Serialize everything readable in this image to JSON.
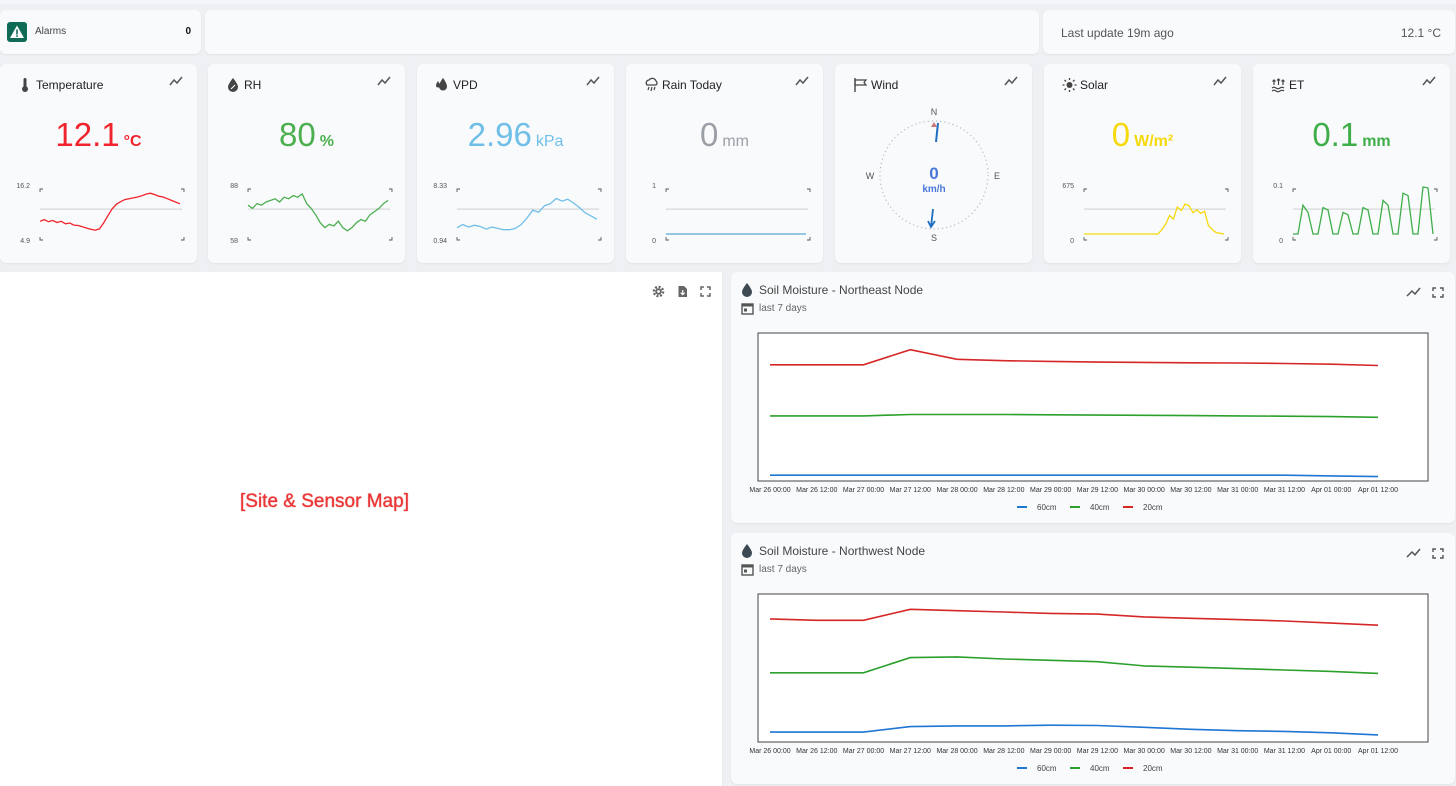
{
  "alarms": {
    "label": "Alarms",
    "count": "0"
  },
  "status": {
    "last_update": "Last update 19m ago",
    "current_temp": "12.1 °C"
  },
  "tiles": [
    {
      "id": "temperature",
      "title": "Temperature",
      "value": "12.1",
      "unit": "°C",
      "color": "#f0242c",
      "icon": "thermometer-icon",
      "range": [
        "16.2",
        "4.9"
      ],
      "series": [
        7.9,
        8.3,
        7.8,
        8.1,
        7.6,
        7.9,
        7.3,
        7.5,
        7.0,
        6.9,
        6.6,
        6.3,
        6.0,
        5.8,
        6.1,
        7.5,
        9.2,
        10.8,
        11.9,
        12.5,
        13.0,
        13.2,
        13.4,
        13.6,
        13.9,
        14.3,
        14.5,
        14.2,
        13.8,
        13.6,
        13.2,
        12.8,
        12.4,
        12.0
      ]
    },
    {
      "id": "rh",
      "title": "RH",
      "value": "80",
      "unit": "%",
      "color": "#4caf50",
      "icon": "droplet-percent-icon",
      "range": [
        "88",
        "58"
      ],
      "series": [
        76,
        74,
        77,
        76,
        78,
        79,
        80,
        78,
        81,
        80,
        82,
        81,
        83,
        77,
        74,
        70,
        65,
        62,
        64,
        63,
        66,
        62,
        60,
        62,
        65,
        67,
        66,
        70,
        72,
        74,
        77,
        79
      ]
    },
    {
      "id": "vpd",
      "title": "VPD",
      "value": "2.96",
      "unit": "kPa",
      "color": "#6fbfe8",
      "icon": "leaf-droplet-icon",
      "range": [
        "8.33",
        "0.94"
      ],
      "series": [
        1.9,
        2.4,
        2.0,
        2.3,
        2.1,
        1.7,
        2.0,
        1.8,
        1.6,
        1.6,
        1.8,
        2.4,
        3.4,
        4.6,
        4.3,
        5.3,
        5.6,
        6.4,
        6.0,
        6.3,
        5.7,
        5.0,
        4.2,
        3.7,
        3.2
      ]
    },
    {
      "id": "rain",
      "title": "Rain Today",
      "value": "0",
      "unit": "mm",
      "color": "#9aa0a6",
      "icon": "rain-cloud-icon",
      "range": [
        "1",
        "0"
      ],
      "series": [
        0,
        0,
        0,
        0,
        0,
        0,
        0,
        0,
        0,
        0
      ]
    },
    {
      "id": "wind",
      "title": "Wind",
      "value": "0",
      "unit": "km/h",
      "color": "#4a78d8",
      "icon": "windsock-icon",
      "compass": {
        "n": "N",
        "e": "E",
        "s": "S",
        "w": "W"
      }
    },
    {
      "id": "solar",
      "title": "Solar",
      "value": "0",
      "unit": "W/m²",
      "color": "#f5d90a",
      "icon": "sun-icon",
      "range": [
        "675",
        "0"
      ],
      "series": [
        0,
        0,
        0,
        0,
        0,
        0,
        0,
        0,
        0,
        0,
        0,
        0,
        0,
        0,
        0,
        0,
        0,
        0,
        0,
        0,
        60,
        140,
        260,
        210,
        380,
        330,
        420,
        400,
        300,
        340,
        290,
        320,
        120,
        60,
        20,
        10,
        0
      ]
    },
    {
      "id": "et",
      "title": "ET",
      "value": "0.1",
      "unit": "mm",
      "color": "#3fae49",
      "icon": "evaporation-icon",
      "range": [
        "0.1",
        "0"
      ],
      "series": [
        0,
        0,
        0.06,
        0.045,
        0,
        0,
        0.055,
        0.05,
        0,
        0,
        0.045,
        0.04,
        0,
        0,
        0.055,
        0.05,
        0,
        0,
        0.07,
        0.06,
        0,
        0,
        0.085,
        0.08,
        0,
        0,
        0.098,
        0.096,
        0
      ]
    }
  ],
  "map": {
    "placeholder": "[Site & Sensor Map]"
  },
  "soil_charts": [
    {
      "id": "ne",
      "title": "Soil Moisture - Northeast Node",
      "subtitle": "last 7 days"
    },
    {
      "id": "nw",
      "title": "Soil Moisture - Northwest Node",
      "subtitle": "last 7 days"
    }
  ],
  "chart_data": [
    {
      "type": "line",
      "title": "Soil Moisture - Northeast Node",
      "x": [
        "Mar 26 00:00",
        "Mar 26 12:00",
        "Mar 27 00:00",
        "Mar 27 12:00",
        "Mar 28 00:00",
        "Mar 28 12:00",
        "Mar 29 00:00",
        "Mar 29 12:00",
        "Mar 30 00:00",
        "Mar 30 12:00",
        "Mar 31 00:00",
        "Mar 31 12:00",
        "Apr 01 00:00",
        "Apr 01 12:00"
      ],
      "ylim": [
        0,
        100
      ],
      "legend_position": "bottom",
      "series": [
        {
          "name": "60cm",
          "color": "#1f77d4",
          "values": [
            2,
            2,
            2,
            2,
            2,
            2,
            2,
            2,
            2,
            2,
            2,
            2,
            1.5,
            1
          ]
        },
        {
          "name": "40cm",
          "color": "#2ca02c",
          "values": [
            45,
            45,
            45,
            46,
            46,
            46,
            45.8,
            45.6,
            45.4,
            45.2,
            45,
            44.8,
            44.5,
            44
          ]
        },
        {
          "name": "20cm",
          "color": "#d62728",
          "values": [
            82,
            82,
            82,
            93,
            86,
            85,
            84.5,
            84,
            83.8,
            83.5,
            83.3,
            83,
            82.5,
            81.5
          ]
        }
      ]
    },
    {
      "type": "line",
      "title": "Soil Moisture - Northwest Node",
      "x": [
        "Mar 26 00:00",
        "Mar 26 12:00",
        "Mar 27 00:00",
        "Mar 27 12:00",
        "Mar 28 00:00",
        "Mar 28 12:00",
        "Mar 29 00:00",
        "Mar 29 12:00",
        "Mar 30 00:00",
        "Mar 30 12:00",
        "Mar 31 00:00",
        "Mar 31 12:00",
        "Apr 01 00:00",
        "Apr 01 12:00"
      ],
      "ylim": [
        0,
        100
      ],
      "legend_position": "bottom",
      "series": [
        {
          "name": "60cm",
          "color": "#1f77d4",
          "values": [
            5,
            5,
            5,
            9,
            9.5,
            9.5,
            10,
            9.8,
            8.5,
            7,
            6,
            5.5,
            4.5,
            3
          ]
        },
        {
          "name": "40cm",
          "color": "#2ca02c",
          "values": [
            48,
            48,
            48,
            59,
            59.5,
            58,
            57,
            56,
            53,
            52,
            51,
            50,
            49,
            47.5
          ]
        },
        {
          "name": "20cm",
          "color": "#d62728",
          "values": [
            87,
            86,
            86,
            94,
            93,
            92,
            91,
            90.5,
            88.5,
            87.5,
            86.5,
            85.5,
            84,
            82.5
          ]
        }
      ]
    }
  ]
}
